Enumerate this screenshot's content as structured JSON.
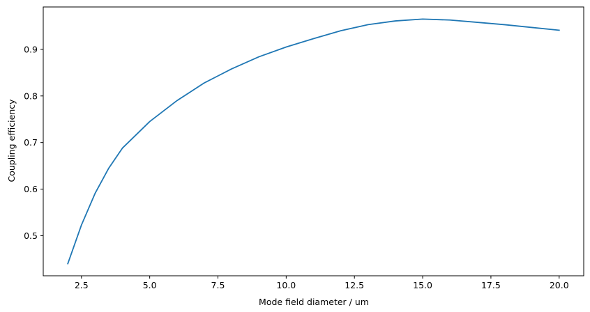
{
  "chart_data": {
    "type": "line",
    "title": "",
    "xlabel": "Mode field diameter / um",
    "ylabel": "Coupling efficiency",
    "xlim": [
      1.1,
      20.9
    ],
    "ylim": [
      0.414,
      0.991
    ],
    "xticks": [
      2.5,
      5.0,
      7.5,
      10.0,
      12.5,
      15.0,
      17.5,
      20.0
    ],
    "xtick_labels": [
      "2.5",
      "5.0",
      "7.5",
      "10.0",
      "12.5",
      "15.0",
      "17.5",
      "20.0"
    ],
    "yticks": [
      0.5,
      0.6,
      0.7,
      0.8,
      0.9
    ],
    "ytick_labels": [
      "0.5",
      "0.6",
      "0.7",
      "0.8",
      "0.9"
    ],
    "grid": false,
    "series": [
      {
        "color": "#1f77b4",
        "x": [
          2.0,
          2.5,
          3.0,
          3.5,
          4.0,
          5.0,
          6.0,
          7.0,
          7.5,
          8.0,
          9.0,
          10.0,
          11.0,
          12.0,
          13.0,
          14.0,
          15.0,
          16.0,
          17.0,
          18.0,
          19.0,
          20.0
        ],
        "y": [
          0.44,
          0.523,
          0.591,
          0.645,
          0.688,
          0.745,
          0.79,
          0.828,
          0.843,
          0.858,
          0.884,
          0.905,
          0.923,
          0.94,
          0.953,
          0.961,
          0.965,
          0.963,
          0.958,
          0.953,
          0.947,
          0.941
        ]
      }
    ]
  }
}
